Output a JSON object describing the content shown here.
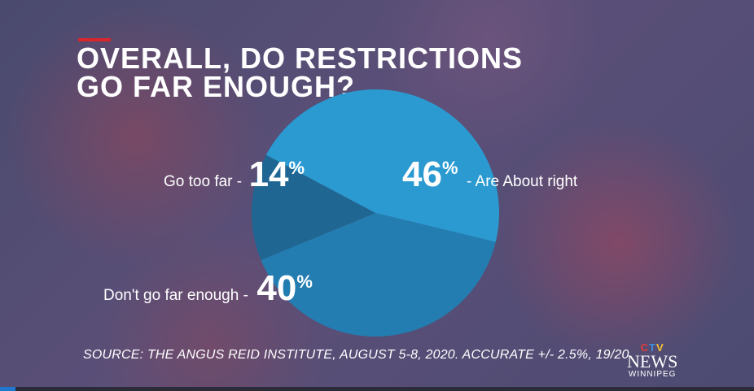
{
  "title_lines": [
    "OVERALL, DO RESTRICTIONS",
    "GO FAR ENOUGH?"
  ],
  "source": "SOURCE: THE ANGUS REID INSTITUTE, AUGUST 5-8, 2020. ACCURATE +/- 2.5%, 19/20",
  "logo": {
    "ctv_letters": [
      "C",
      "T",
      "V"
    ],
    "news": "NEWS",
    "city": "WINNIPEG"
  },
  "progress": 0.02,
  "colors": {
    "accent": "#d9262c",
    "about_right": "#2a9ad1",
    "too_far": "#1f6792",
    "not_enough": "#247db0"
  },
  "chart_data": {
    "type": "pie",
    "title": "OVERALL, DO RESTRICTIONS GO FAR ENOUGH?",
    "slices": [
      {
        "label": "Are About right",
        "value": 46,
        "pct_text": "46",
        "label_prefix": "- Are About right",
        "color": "#2a9ad1"
      },
      {
        "label": "Don't go far enough",
        "value": 40,
        "pct_text": "40",
        "label_text": "Don't go far enough -",
        "color": "#247db0"
      },
      {
        "label": "Go too far",
        "value": 14,
        "pct_text": "14",
        "label_text": "Go too far -",
        "color": "#1f6792"
      }
    ],
    "percent_sign": "%"
  }
}
